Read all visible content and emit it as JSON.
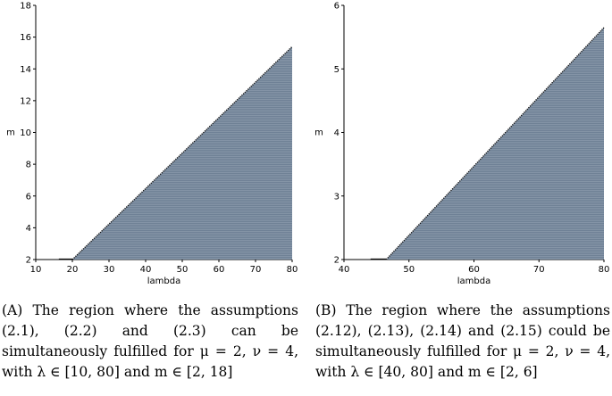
{
  "chart_data": [
    {
      "type": "area",
      "panel": "A",
      "xlabel": "lambda",
      "ylabel": "m",
      "xlim": [
        10,
        80
      ],
      "ylim": [
        2,
        18
      ],
      "xticks": [
        10,
        20,
        30,
        40,
        50,
        60,
        70,
        80
      ],
      "yticks": [
        2,
        4,
        6,
        8,
        10,
        12,
        14,
        16,
        18
      ],
      "boundary": {
        "x": [
          20,
          80
        ],
        "y": [
          2,
          15.4
        ]
      },
      "fill_color": "#6f8196",
      "grid": false,
      "caption": "(A) The region where the assumptions (2.1), (2.2) and (2.3) can be simultaneously fulfilled for μ = 2, ν = 4, with λ ∈ [10, 80] and m ∈ [2, 18]"
    },
    {
      "type": "area",
      "panel": "B",
      "xlabel": "lambda",
      "ylabel": "m",
      "xlim": [
        40,
        80
      ],
      "ylim": [
        2,
        6
      ],
      "xticks": [
        40,
        50,
        60,
        70,
        80
      ],
      "yticks": [
        2,
        3,
        4,
        5,
        6
      ],
      "boundary": {
        "x": [
          46.5,
          80
        ],
        "y": [
          2,
          5.65
        ]
      },
      "fill_color": "#6f8196",
      "grid": false,
      "caption": "(B) The region where the assumptions (2.12), (2.13), (2.14) and (2.15) could be simultaneously fulfilled for μ = 2, ν = 4, with λ ∈ [40, 80] and m ∈ [2, 6]"
    }
  ]
}
